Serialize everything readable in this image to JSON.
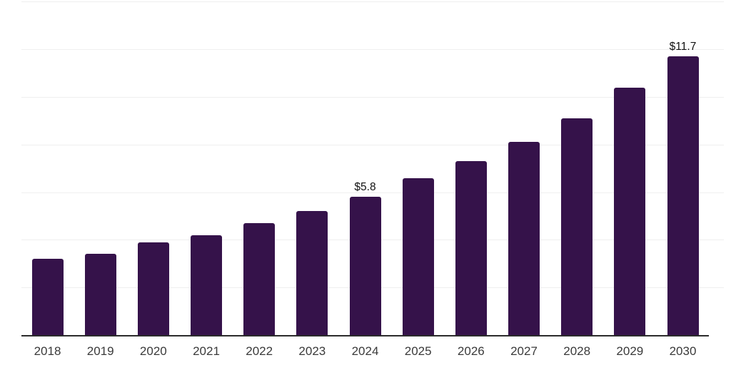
{
  "chart_data": {
    "type": "bar",
    "title": "",
    "xlabel": "",
    "ylabel": "",
    "categories": [
      "2018",
      "2019",
      "2020",
      "2021",
      "2022",
      "2023",
      "2024",
      "2025",
      "2026",
      "2027",
      "2028",
      "2029",
      "2030"
    ],
    "values": [
      3.2,
      3.4,
      3.9,
      4.2,
      4.7,
      5.2,
      5.8,
      6.6,
      7.3,
      8.1,
      9.1,
      10.4,
      11.7
    ],
    "data_labels": {
      "2024": "$5.8",
      "2030": "$11.7"
    },
    "ylim": [
      0,
      14
    ],
    "grid_step": 2,
    "grid": "horizontal-only",
    "legend": "none",
    "y_axis_tick_labels": "none",
    "colors": {
      "bar": "#35124A",
      "gridline": "#EFEFEF",
      "axis_line": "#2B2B2B",
      "tick_label": "#3A3A3A",
      "value_label": "#111111",
      "background": "#FFFFFF"
    }
  }
}
